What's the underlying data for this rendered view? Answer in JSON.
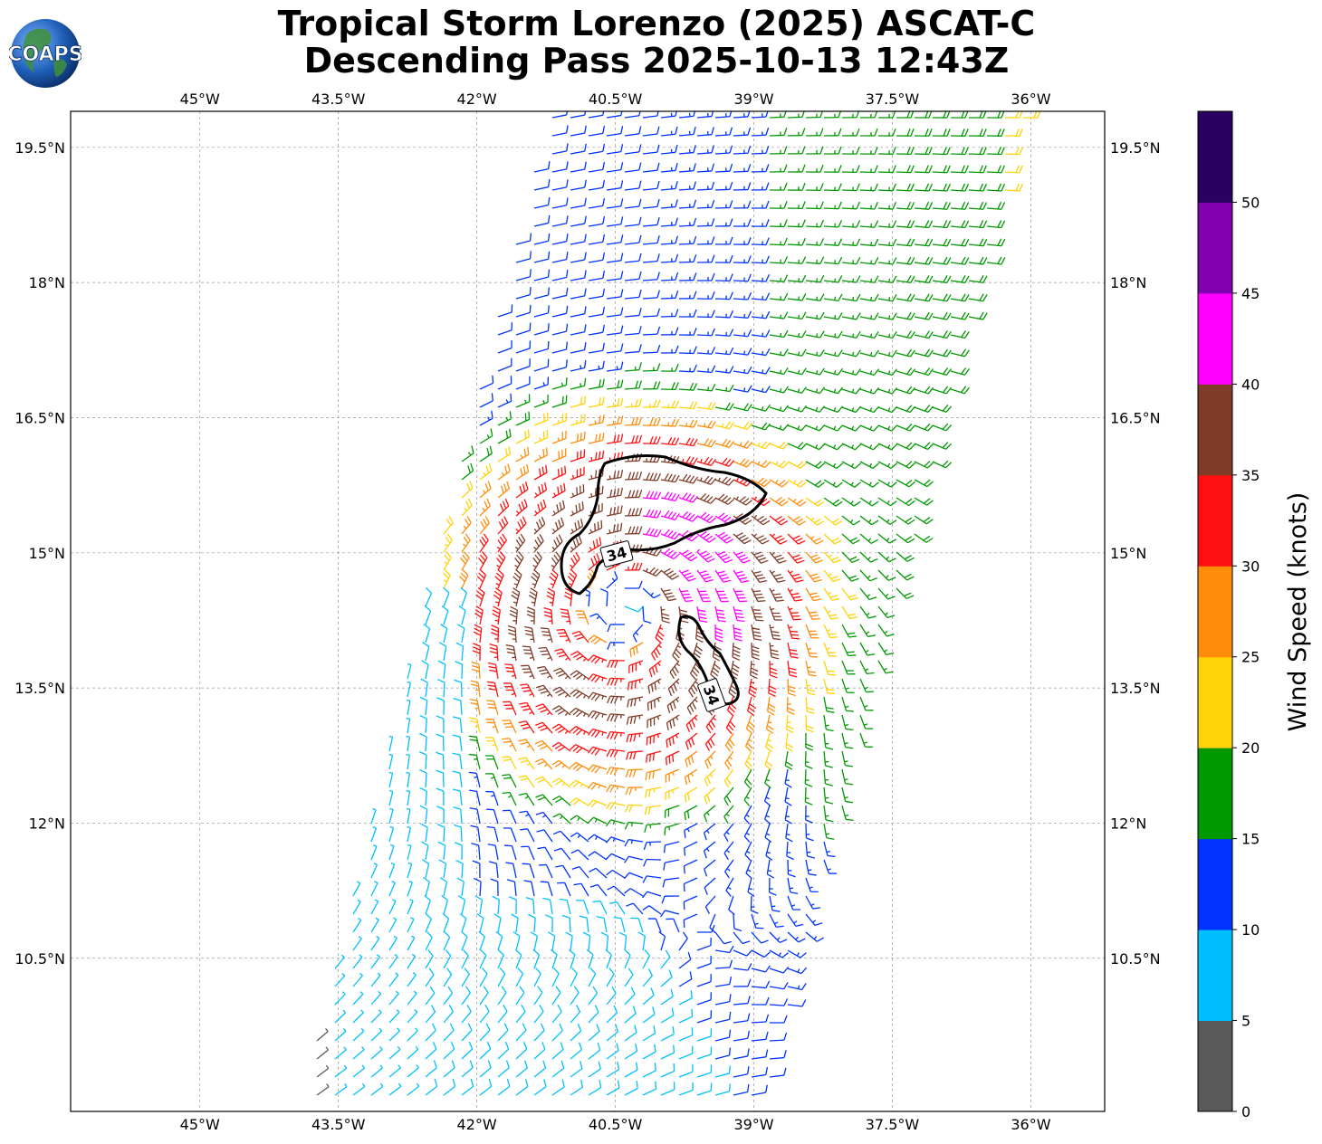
{
  "title": {
    "line1": "Tropical Storm Lorenzo (2025) ASCAT-C",
    "line2": "Descending Pass 2025-10-13 12:43Z"
  },
  "logo": {
    "text": "COAPS"
  },
  "map": {
    "lon_range": [
      -46.4,
      -35.2
    ],
    "lat_range": [
      8.8,
      19.9
    ],
    "lon_ticks": [
      "45°W",
      "43.5°W",
      "42°W",
      "40.5°W",
      "39°W",
      "37.5°W",
      "36°W"
    ],
    "lon_tick_values": [
      -45,
      -43.5,
      -42,
      -40.5,
      -39,
      -37.5,
      -36
    ],
    "lat_ticks": [
      "19.5°N",
      "18°N",
      "16.5°N",
      "15°N",
      "13.5°N",
      "12°N",
      "10.5°N"
    ],
    "lat_tick_values": [
      19.5,
      18,
      16.5,
      15,
      13.5,
      12,
      10.5
    ],
    "grid": "dashed",
    "contour_label": "34",
    "contour_labels": [
      "34",
      "34"
    ]
  },
  "colorbar": {
    "label": "Wind Speed (knots)",
    "ticks": [
      "0",
      "5",
      "10",
      "15",
      "20",
      "25",
      "30",
      "35",
      "40",
      "45",
      "50"
    ],
    "colors": [
      "#595959",
      "#00bfff",
      "#0033ff",
      "#009900",
      "#ffd20a",
      "#ff8c0a",
      "#ff1010",
      "#803c28",
      "#ff00ff",
      "#8000b0",
      "#2a0060"
    ],
    "bins": [
      [
        0,
        5
      ],
      [
        5,
        10
      ],
      [
        10,
        15
      ],
      [
        15,
        20
      ],
      [
        20,
        25
      ],
      [
        25,
        30
      ],
      [
        30,
        35
      ],
      [
        35,
        40
      ],
      [
        40,
        45
      ],
      [
        45,
        50
      ],
      [
        50,
        55
      ]
    ]
  },
  "chart_data": {
    "type": "scatter",
    "description_units": "wind barbs, speed in knots",
    "storm_center": {
      "lon": -40.4,
      "lat": 14.4
    },
    "contour_34kt": [
      {
        "lon": -40.6,
        "lat": 15.1
      },
      {
        "lon": -39.1,
        "lat": 13.7
      }
    ]
  }
}
